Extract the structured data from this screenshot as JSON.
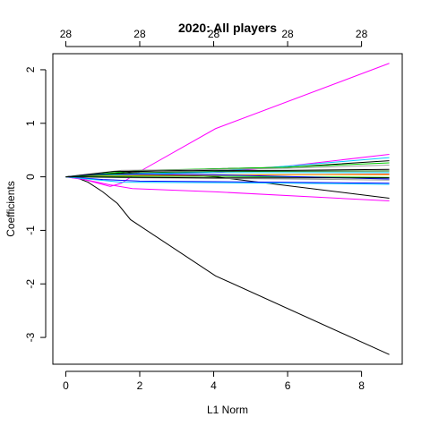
{
  "chart_data": {
    "type": "line",
    "title": "2020: All players",
    "xlabel": "L1 Norm",
    "ylabel": "Coefficients",
    "xlim": [
      -0.35,
      9.1
    ],
    "ylim": [
      -3.5,
      2.3
    ],
    "x_ticks": [
      0,
      2,
      4,
      6,
      8
    ],
    "y_ticks": [
      -3,
      -2,
      -1,
      0,
      1,
      2
    ],
    "top_axis_ticks": [
      {
        "x": 0,
        "label": "28"
      },
      {
        "x": 2,
        "label": "28"
      },
      {
        "x": 4,
        "label": "28"
      },
      {
        "x": 6,
        "label": "28"
      },
      {
        "x": 8,
        "label": "28"
      }
    ],
    "grid": false,
    "legend": "none",
    "series": [
      {
        "color": "#FF00FF",
        "points": [
          [
            0,
            0
          ],
          [
            0.5,
            -0.05
          ],
          [
            1.2,
            -0.18
          ],
          [
            1.5,
            -0.12
          ],
          [
            2,
            0.1
          ],
          [
            4.05,
            0.9
          ],
          [
            8.75,
            2.12
          ]
        ]
      },
      {
        "color": "#000000",
        "points": [
          [
            0,
            0
          ],
          [
            0.3,
            -0.02
          ],
          [
            0.6,
            -0.1
          ],
          [
            1.0,
            -0.28
          ],
          [
            1.4,
            -0.5
          ],
          [
            1.75,
            -0.8
          ],
          [
            4.05,
            -1.85
          ],
          [
            8.75,
            -3.32
          ]
        ]
      },
      {
        "color": "#000000",
        "points": [
          [
            0,
            0
          ],
          [
            1.0,
            0.05
          ],
          [
            2.5,
            0.05
          ],
          [
            4.05,
            0.0
          ],
          [
            8.75,
            -0.4
          ]
        ]
      },
      {
        "color": "#FF00FF",
        "points": [
          [
            0,
            0
          ],
          [
            0.5,
            -0.05
          ],
          [
            1.2,
            -0.15
          ],
          [
            1.8,
            -0.22
          ],
          [
            4.05,
            -0.28
          ],
          [
            8.75,
            -0.45
          ]
        ]
      },
      {
        "color": "#FF00FF",
        "points": [
          [
            0,
            0
          ],
          [
            2,
            0.05
          ],
          [
            4,
            0.08
          ],
          [
            6,
            0.2
          ],
          [
            8.75,
            0.42
          ]
        ]
      },
      {
        "color": "#00CCFF",
        "points": [
          [
            0,
            0
          ],
          [
            2,
            0.04
          ],
          [
            4,
            0.1
          ],
          [
            6,
            0.2
          ],
          [
            8.75,
            0.36
          ]
        ]
      },
      {
        "color": "#000000",
        "points": [
          [
            0,
            0
          ],
          [
            2,
            0.1
          ],
          [
            4,
            0.15
          ],
          [
            6,
            0.18
          ],
          [
            8.75,
            0.3
          ]
        ]
      },
      {
        "color": "#00CD00",
        "points": [
          [
            0,
            0
          ],
          [
            2,
            0.12
          ],
          [
            4,
            0.15
          ],
          [
            6,
            0.18
          ],
          [
            8.75,
            0.26
          ]
        ]
      },
      {
        "color": "#999999",
        "points": [
          [
            0,
            0
          ],
          [
            1.5,
            0.12
          ],
          [
            4,
            0.14
          ],
          [
            6,
            0.16
          ],
          [
            8.75,
            0.22
          ]
        ]
      },
      {
        "color": "#000000",
        "points": [
          [
            0,
            0
          ],
          [
            1.3,
            0.1
          ],
          [
            4,
            0.12
          ],
          [
            6,
            0.12
          ],
          [
            8.75,
            0.14
          ]
        ]
      },
      {
        "color": "#00CCFF",
        "points": [
          [
            0,
            0
          ],
          [
            2,
            0.06
          ],
          [
            4,
            0.08
          ],
          [
            6,
            0.08
          ],
          [
            8.75,
            0.08
          ]
        ]
      },
      {
        "color": "#FF0000",
        "points": [
          [
            0,
            0
          ],
          [
            2,
            0.02
          ],
          [
            4,
            0.03
          ],
          [
            6,
            0.04
          ],
          [
            8.75,
            0.05
          ]
        ]
      },
      {
        "color": "#FFA500",
        "points": [
          [
            0,
            0
          ],
          [
            2,
            0.03
          ],
          [
            4,
            0.04
          ],
          [
            6,
            0.04
          ],
          [
            8.75,
            0.04
          ]
        ]
      },
      {
        "color": "#00CD00",
        "points": [
          [
            0,
            0
          ],
          [
            2,
            0.01
          ],
          [
            4,
            0.01
          ],
          [
            6,
            0.0
          ],
          [
            8.75,
            -0.01
          ]
        ]
      },
      {
        "color": "#0000FF",
        "points": [
          [
            0,
            0
          ],
          [
            1,
            0.05
          ],
          [
            2,
            0.05
          ],
          [
            4,
            0.04
          ],
          [
            8.75,
            -0.04
          ]
        ]
      },
      {
        "color": "#999999",
        "points": [
          [
            0,
            0
          ],
          [
            2,
            -0.02
          ],
          [
            4,
            -0.03
          ],
          [
            6,
            -0.04
          ],
          [
            8.75,
            -0.06
          ]
        ]
      },
      {
        "color": "#0000FF",
        "points": [
          [
            0,
            0
          ],
          [
            1,
            -0.05
          ],
          [
            2,
            -0.08
          ],
          [
            4,
            -0.09
          ],
          [
            8.75,
            -0.12
          ]
        ]
      },
      {
        "color": "#00CCFF",
        "points": [
          [
            0,
            0
          ],
          [
            1.5,
            -0.1
          ],
          [
            4,
            -0.11
          ],
          [
            6,
            -0.12
          ],
          [
            8.75,
            -0.14
          ]
        ]
      },
      {
        "color": "#006400",
        "points": [
          [
            0,
            0
          ],
          [
            2,
            0.08
          ],
          [
            4,
            0.1
          ],
          [
            8.75,
            0.11
          ]
        ]
      },
      {
        "color": "#000000",
        "points": [
          [
            0,
            0
          ],
          [
            2,
            -0.01
          ],
          [
            4,
            -0.02
          ],
          [
            8.75,
            -0.02
          ]
        ]
      }
    ]
  }
}
